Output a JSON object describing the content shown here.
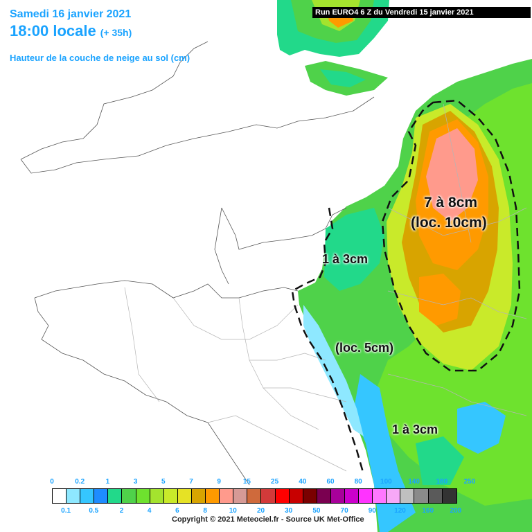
{
  "header": {
    "date": "Samedi 16 janvier 2021",
    "time": "18:00 locale",
    "lead": "(+ 35h)",
    "parameter": "Hauteur de la couche de neige au sol (cm)",
    "run": "Run EURO4 6 Z du Vendredi 15 janvier 2021",
    "text_color": "#1aa3ff"
  },
  "annotations": {
    "zone_high_line1": "7 à 8cm",
    "zone_high_line2": "(loc. 10cm)",
    "zone_west": "1 à 3cm",
    "zone_center": "(loc. 5cm)",
    "zone_south": "1 à 3cm"
  },
  "legend": {
    "labels_top": [
      "0",
      "0.2",
      "1",
      "3",
      "5",
      "7",
      "9",
      "15",
      "25",
      "40",
      "60",
      "80",
      "100",
      "140",
      "180",
      "250"
    ],
    "labels_bottom": [
      "0.1",
      "0.5",
      "2",
      "4",
      "6",
      "8",
      "10",
      "20",
      "30",
      "50",
      "70",
      "90",
      "120",
      "160",
      "200"
    ],
    "colors": [
      "#ffffff",
      "#8ee8ff",
      "#35c6ff",
      "#1e8cff",
      "#22d98a",
      "#4fd24a",
      "#6ee22e",
      "#a4e32e",
      "#c9ea2a",
      "#e6e225",
      "#d8a400",
      "#ff9a00",
      "#ff9a8c",
      "#d69a96",
      "#cf6a3c",
      "#d33a3a",
      "#ff0000",
      "#c80000",
      "#7a0000",
      "#7a0050",
      "#a8009a",
      "#cc00cc",
      "#ff33ff",
      "#ff77ff",
      "#f7a8f7",
      "#c0c0c0",
      "#8a8a8a",
      "#5a5a5a",
      "#333333"
    ]
  },
  "copyright": "Copyright © 2021 Meteociel.fr - Source UK Met-Office"
}
